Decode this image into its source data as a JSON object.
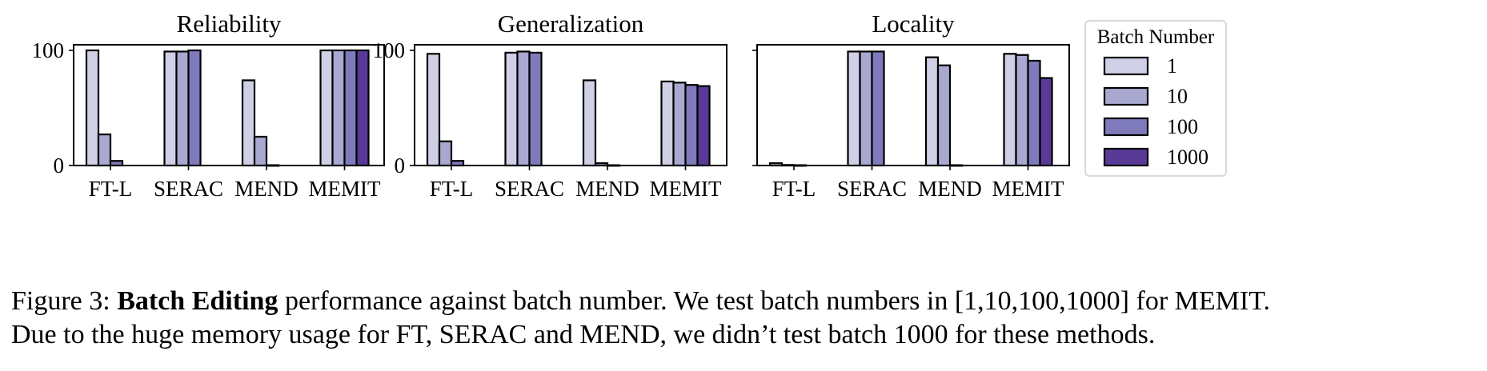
{
  "chart_data": [
    {
      "type": "bar",
      "title": "Reliability",
      "categories": [
        "FT-L",
        "SERAC",
        "MEND",
        "MEMIT"
      ],
      "ylim": [
        0,
        100
      ],
      "yticks": [
        0,
        100
      ],
      "series": [
        {
          "name": "1",
          "values": [
            100,
            99,
            74,
            100
          ]
        },
        {
          "name": "10",
          "values": [
            27,
            99,
            25,
            100
          ]
        },
        {
          "name": "100",
          "values": [
            4,
            100,
            0.3,
            100
          ]
        },
        {
          "name": "1000",
          "values": [
            null,
            null,
            null,
            100
          ]
        }
      ]
    },
    {
      "type": "bar",
      "title": "Generalization",
      "categories": [
        "FT-L",
        "SERAC",
        "MEND",
        "MEMIT"
      ],
      "ylim": [
        0,
        100
      ],
      "yticks": [
        0,
        100
      ],
      "series": [
        {
          "name": "1",
          "values": [
            97,
            98,
            74,
            73
          ]
        },
        {
          "name": "10",
          "values": [
            21,
            99,
            2,
            72
          ]
        },
        {
          "name": "100",
          "values": [
            4,
            98,
            0.3,
            70
          ]
        },
        {
          "name": "1000",
          "values": [
            null,
            null,
            null,
            69
          ]
        }
      ]
    },
    {
      "type": "bar",
      "title": "Locality",
      "categories": [
        "FT-L",
        "SERAC",
        "MEND",
        "MEMIT"
      ],
      "ylim": [
        0,
        100
      ],
      "yticks": [],
      "series": [
        {
          "name": "1",
          "values": [
            2,
            99,
            94,
            97
          ]
        },
        {
          "name": "10",
          "values": [
            0.5,
            99,
            87,
            96
          ]
        },
        {
          "name": "100",
          "values": [
            0.3,
            99,
            0.3,
            91
          ]
        },
        {
          "name": "1000",
          "values": [
            null,
            null,
            null,
            76
          ]
        }
      ]
    }
  ],
  "legend": {
    "title": "Batch Number",
    "placement": "right",
    "items": [
      {
        "label": "1",
        "color": "#cfcfe6"
      },
      {
        "label": "10",
        "color": "#a9a8d0"
      },
      {
        "label": "100",
        "color": "#7f7abb"
      },
      {
        "label": "1000",
        "color": "#5a3a97"
      }
    ]
  },
  "caption": {
    "prefix": "Figure 3: ",
    "bold": "Batch Editing",
    "line1_rest": " performance against batch number. We test batch numbers in [1,10,100,1000] for MEMIT.",
    "line2": "Due to the huge memory usage for FT, SERAC and MEND, we didn’t test batch 1000 for these methods."
  }
}
